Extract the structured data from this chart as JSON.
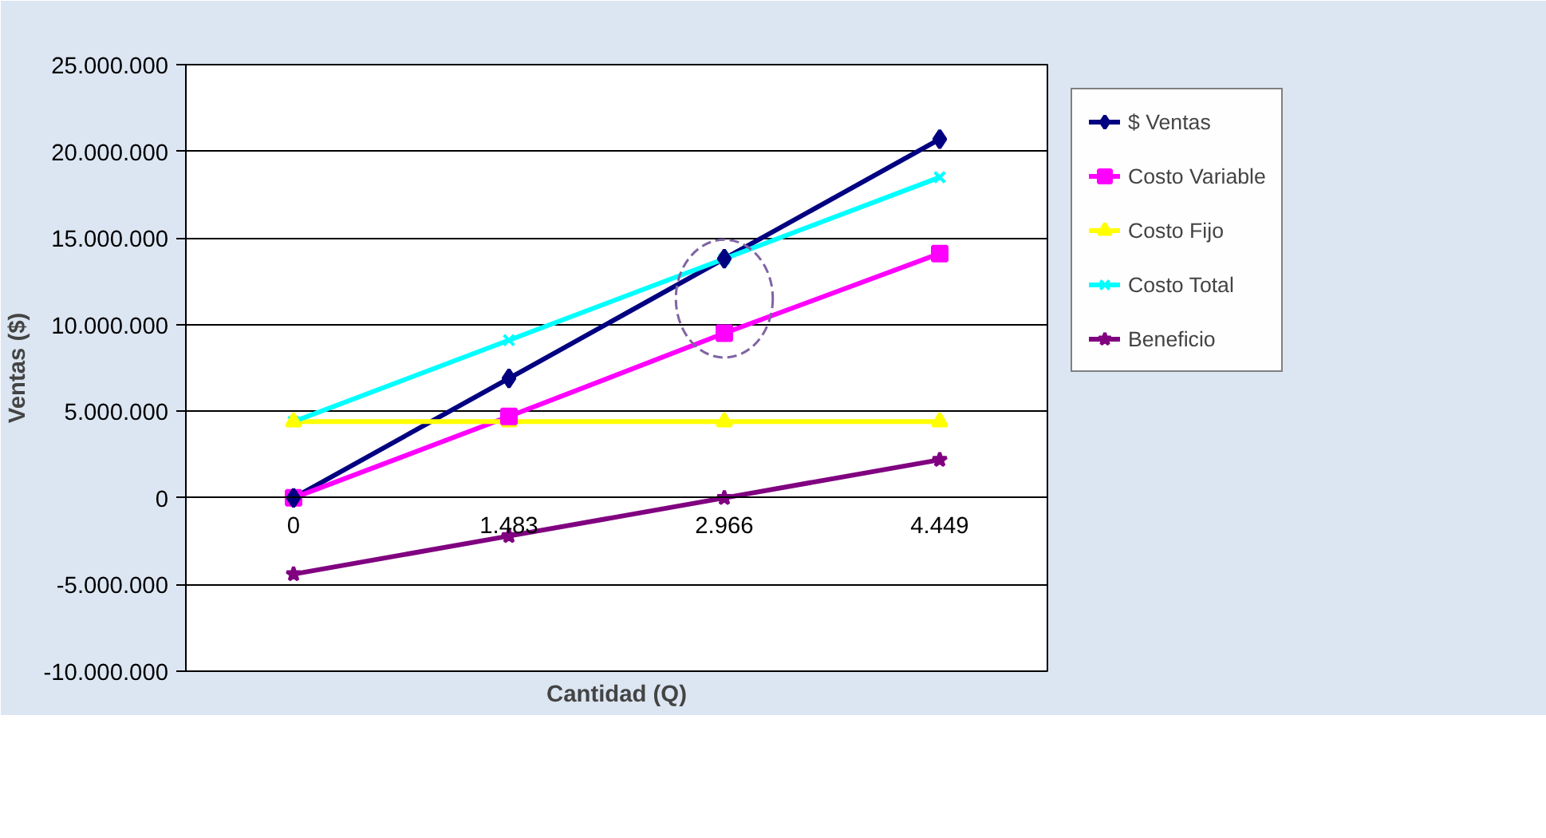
{
  "chart_data": {
    "type": "line",
    "xlabel": "Cantidad (Q)",
    "ylabel": "Ventas ($)",
    "categories": [
      "0",
      "1.483",
      "2.966",
      "4.449"
    ],
    "series": [
      {
        "name": "$ Ventas",
        "color": "#000080",
        "marker": "diamond",
        "values": [
          0,
          6900000,
          13800000,
          20700000
        ]
      },
      {
        "name": "Costo Variable",
        "color": "#ff00ff",
        "marker": "square",
        "values": [
          0,
          4700000,
          9500000,
          14100000
        ]
      },
      {
        "name": "Costo Fijo",
        "color": "#ffff00",
        "marker": "triangle",
        "values": [
          4400000,
          4400000,
          4400000,
          4400000
        ]
      },
      {
        "name": "Costo Total",
        "color": "#00ffff",
        "marker": "cross",
        "values": [
          4400000,
          9100000,
          13800000,
          18500000
        ]
      },
      {
        "name": "Beneficio",
        "color": "#800080",
        "marker": "star",
        "values": [
          -4400000,
          -2200000,
          0,
          2200000
        ]
      }
    ],
    "ylim": [
      -10000000,
      25000000
    ],
    "yticks": [
      {
        "value": -10000000,
        "label": "-10.000.000"
      },
      {
        "value": -5000000,
        "label": "-5.000.000"
      },
      {
        "value": 0,
        "label": "0"
      },
      {
        "value": 5000000,
        "label": "5.000.000"
      },
      {
        "value": 10000000,
        "label": "10.000.000"
      },
      {
        "value": 15000000,
        "label": "15.000.000"
      },
      {
        "value": 20000000,
        "label": "20.000.000"
      },
      {
        "value": 25000000,
        "label": "25.000.000"
      }
    ],
    "grid": "y",
    "legend": "right"
  }
}
